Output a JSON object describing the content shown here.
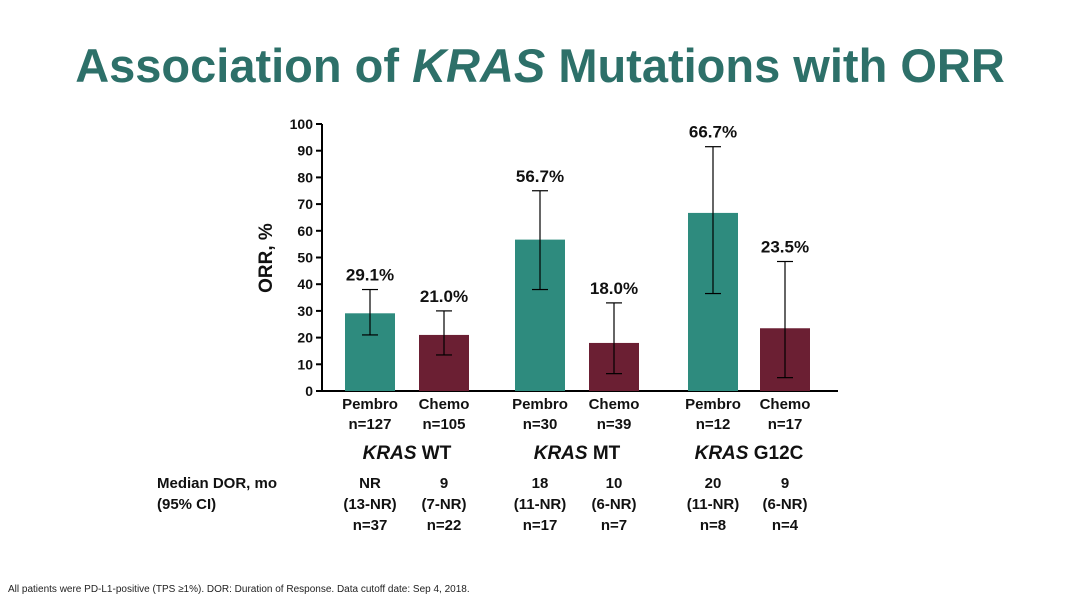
{
  "title": {
    "pre": "Association of ",
    "italic": "KRAS",
    "post": " Mutations with ORR"
  },
  "chart_data": {
    "type": "bar",
    "ylabel": "ORR, %",
    "ylim": [
      0,
      100
    ],
    "yticks": [
      0,
      10,
      20,
      30,
      40,
      50,
      60,
      70,
      80,
      90,
      100
    ],
    "colors": {
      "pembro": "#2e8b7e",
      "chemo": "#6b1f33"
    },
    "groups": [
      {
        "name_italic": "KRAS",
        "name_rest": " WT",
        "bars": [
          {
            "arm": "Pembro",
            "n": "n=127",
            "value": 29.1,
            "label": "29.1%",
            "ci": [
              21,
              38
            ]
          },
          {
            "arm": "Chemo",
            "n": "n=105",
            "value": 21.0,
            "label": "21.0%",
            "ci": [
              13.5,
              30
            ]
          }
        ],
        "dor": [
          {
            "median": "NR",
            "ci": "(13-NR)",
            "n": "n=37"
          },
          {
            "median": "9",
            "ci": "(7-NR)",
            "n": "n=22"
          }
        ]
      },
      {
        "name_italic": "KRAS",
        "name_rest": " MT",
        "bars": [
          {
            "arm": "Pembro",
            "n": "n=30",
            "value": 56.7,
            "label": "56.7%",
            "ci": [
              38,
              75
            ]
          },
          {
            "arm": "Chemo",
            "n": "n=39",
            "value": 18.0,
            "label": "18.0%",
            "ci": [
              6.5,
              33
            ]
          }
        ],
        "dor": [
          {
            "median": "18",
            "ci": "(11-NR)",
            "n": "n=17"
          },
          {
            "median": "10",
            "ci": "(6-NR)",
            "n": "n=7"
          }
        ]
      },
      {
        "name_italic": "KRAS",
        "name_rest": " G12C",
        "bars": [
          {
            "arm": "Pembro",
            "n": "n=12",
            "value": 66.7,
            "label": "66.7%",
            "ci": [
              36.5,
              91.5
            ]
          },
          {
            "arm": "Chemo",
            "n": "n=17",
            "value": 23.5,
            "label": "23.5%",
            "ci": [
              5,
              48.5
            ]
          }
        ],
        "dor": [
          {
            "median": "20",
            "ci": "(11-NR)",
            "n": "n=8"
          },
          {
            "median": "9",
            "ci": "(6-NR)",
            "n": "n=4"
          }
        ]
      }
    ]
  },
  "dor_label": {
    "line1": "Median DOR, mo",
    "line2": "(95% CI)"
  },
  "footnote": "All patients were PD-L1-positive (TPS ≥1%). DOR: Duration of Response. Data cutoff date: Sep 4, 2018."
}
